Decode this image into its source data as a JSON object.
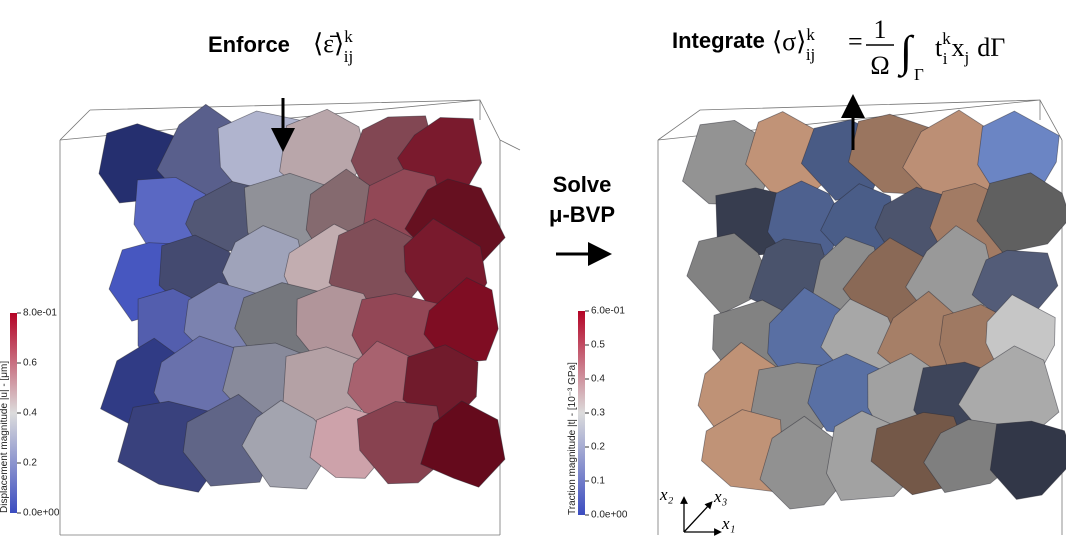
{
  "left": {
    "label": "Enforce",
    "formula": {
      "base": "⟨ε̄⟩",
      "sup": "k",
      "sub": "ij"
    },
    "colorbar": {
      "title": "Displacement magnitude |u| - [μm]",
      "range": [
        0,
        0.8
      ],
      "ticks": [
        {
          "value": 0.8,
          "label": "8.0e-01"
        },
        0.6,
        0.4,
        0.2,
        {
          "value": 0,
          "label": "0.0e+00"
        }
      ]
    }
  },
  "middle": {
    "line1": "Solve",
    "line2": "μ-BVP"
  },
  "right": {
    "label": "Integrate",
    "formula": {
      "lhs": "⟨σ⟩",
      "lhs_sup": "k",
      "lhs_sub": "ij",
      "eq": "=",
      "numerator": "1",
      "denominator": "Ω",
      "integral": "∫",
      "domain": "Γ",
      "t": "t",
      "t_sup": "k",
      "t_sub": "i",
      "x": "x",
      "x_sub": "j",
      "d": "dΓ"
    },
    "colorbar": {
      "title": "Traction magnitude |t| - [10⁻³ GPa]",
      "range": [
        0,
        0.6
      ],
      "ticks": [
        {
          "value": 0.6,
          "label": "6.0e-01"
        },
        0.5,
        0.4,
        0.3,
        0.2,
        0.1,
        {
          "value": 0,
          "label": "0.0e+00"
        }
      ]
    },
    "axes": {
      "x1": "x₁",
      "x2": "x₂",
      "x3": "x₃"
    }
  }
}
